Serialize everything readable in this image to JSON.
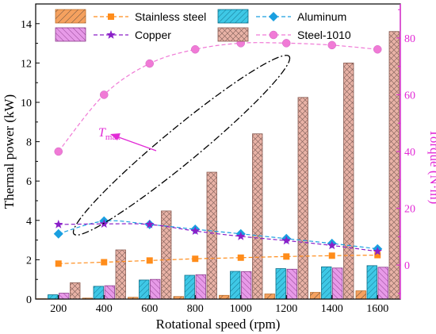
{
  "chart_data": {
    "type": "bar",
    "xlabel": "Rotational speed (rpm)",
    "ylabel": "Thermal power (kW)",
    "y2label": "Torque (N·m)",
    "categories": [
      "200",
      "400",
      "600",
      "800",
      "1000",
      "1200",
      "1400",
      "1600"
    ],
    "ylim": [
      0,
      15
    ],
    "y2lim": [
      -12,
      92
    ],
    "yticks": [
      "0",
      "2",
      "4",
      "6",
      "8",
      "10",
      "12",
      "14"
    ],
    "y2ticks": [
      "0",
      "20",
      "40",
      "60",
      "80"
    ],
    "bar_series": [
      {
        "name": "Stainless steel",
        "values": [
          0.02,
          0.05,
          0.09,
          0.13,
          0.19,
          0.26,
          0.34,
          0.42
        ],
        "color": "#f5a15f"
      },
      {
        "name": "Aluminum",
        "values": [
          0.22,
          0.65,
          0.97,
          1.21,
          1.41,
          1.55,
          1.64,
          1.7
        ],
        "color": "#3ec8e6"
      },
      {
        "name": "Copper",
        "values": [
          0.3,
          0.68,
          1.0,
          1.24,
          1.4,
          1.52,
          1.58,
          1.62
        ],
        "color": "#e79ae8"
      },
      {
        "name": "Steel-1010",
        "values": [
          0.83,
          2.5,
          4.48,
          6.45,
          8.4,
          10.25,
          12.0,
          13.6
        ],
        "color": "#e8b2a6"
      }
    ],
    "torque_series": [
      {
        "name": "Stainless steel",
        "values": [
          0.5,
          1.0,
          1.6,
          2.2,
          2.6,
          3.0,
          3.3,
          3.5
        ],
        "color": "#ff8c1a",
        "marker": "square"
      },
      {
        "name": "Aluminum",
        "values": [
          11.0,
          15.5,
          14.3,
          12.6,
          11.0,
          9.3,
          7.6,
          5.7
        ],
        "color": "#1a9fe0",
        "marker": "diamond"
      },
      {
        "name": "Copper",
        "values": [
          14.3,
          14.5,
          14.3,
          12.0,
          10.1,
          8.6,
          6.9,
          4.8
        ],
        "color": "#8a1fc8",
        "marker": "star"
      },
      {
        "name": "Steel-1010",
        "values": [
          40.0,
          60.0,
          71.0,
          76.0,
          78.2,
          78.2,
          77.5,
          76.0
        ],
        "color": "#f07ad6",
        "marker": "circle"
      }
    ],
    "annotation": {
      "text": "T",
      "subscript": "max"
    }
  },
  "colors": {
    "torque_axis": "#e22ad6",
    "annotation": "#e22ad6",
    "ellipse": "#000000"
  }
}
